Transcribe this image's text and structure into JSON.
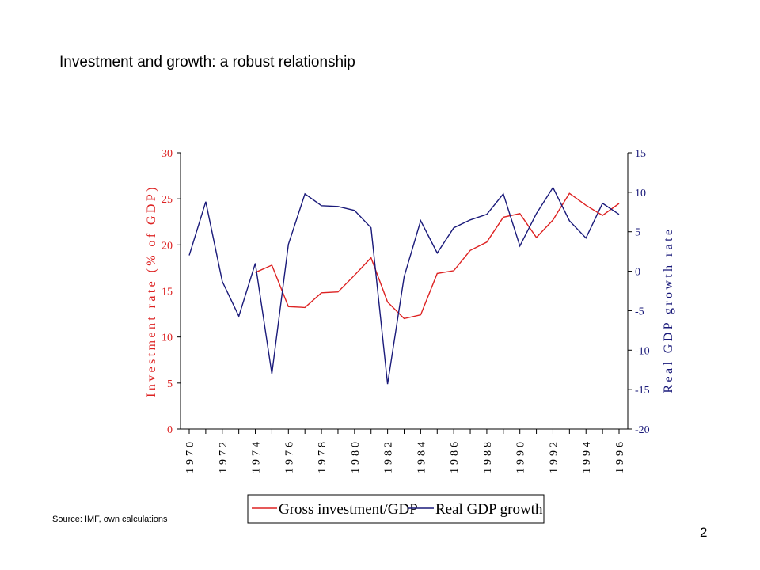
{
  "slide": {
    "title": "Investment and growth: a robust relationship",
    "source": "Source: IMF,  own calculations",
    "page_number": "2"
  },
  "colors": {
    "investment": "#dd2222",
    "growth": "#1a1a7a",
    "axis": "#000000"
  },
  "chart_data": {
    "type": "line",
    "title": "",
    "x": [
      1970,
      1971,
      1972,
      1973,
      1974,
      1975,
      1976,
      1977,
      1978,
      1979,
      1980,
      1981,
      1982,
      1983,
      1984,
      1985,
      1986,
      1987,
      1988,
      1989,
      1990,
      1991,
      1992,
      1993,
      1994,
      1995,
      1996
    ],
    "x_tick_labels": [
      "1970",
      "1972",
      "1974",
      "1976",
      "1978",
      "1980",
      "1982",
      "1984",
      "1986",
      "1988",
      "1990",
      "1992",
      "1994",
      "1996"
    ],
    "y_left_label": "Investment rate (% of GDP)",
    "y_right_label": "Real GDP growth rate",
    "y_left_lim": [
      0,
      30
    ],
    "y_right_lim": [
      -20,
      15
    ],
    "y_left_ticks": [
      0,
      5,
      10,
      15,
      20,
      25,
      30
    ],
    "y_right_ticks": [
      -20,
      -15,
      -10,
      -5,
      0,
      5,
      10,
      15
    ],
    "grid": false,
    "legend_position": "bottom",
    "series": [
      {
        "name": "Gross investment/GDP",
        "axis": "left",
        "x": [
          1974,
          1975,
          1976,
          1977,
          1978,
          1979,
          1980,
          1981,
          1982,
          1983,
          1984,
          1985,
          1986,
          1987,
          1988,
          1989,
          1990,
          1991,
          1992,
          1993,
          1994,
          1995,
          1996
        ],
        "values": [
          17.0,
          17.8,
          13.3,
          13.2,
          14.8,
          14.9,
          16.7,
          18.6,
          13.8,
          12.0,
          12.4,
          16.9,
          17.2,
          19.4,
          20.3,
          23.0,
          23.4,
          20.8,
          22.7,
          25.6,
          24.3,
          23.2,
          24.5
        ]
      },
      {
        "name": "Real GDP growth",
        "axis": "right",
        "x": [
          1970,
          1971,
          1972,
          1973,
          1974,
          1975,
          1976,
          1977,
          1978,
          1979,
          1980,
          1981,
          1982,
          1983,
          1984,
          1985,
          1986,
          1987,
          1988,
          1989,
          1990,
          1991,
          1992,
          1993,
          1994,
          1995,
          1996
        ],
        "values": [
          2.0,
          8.8,
          -1.3,
          -5.7,
          1.0,
          -13.0,
          3.4,
          9.8,
          8.3,
          8.2,
          7.7,
          5.5,
          -14.3,
          -0.7,
          6.4,
          2.3,
          5.5,
          6.5,
          7.2,
          9.8,
          3.2,
          7.3,
          10.6,
          6.4,
          4.2,
          8.6,
          7.2
        ]
      }
    ]
  }
}
